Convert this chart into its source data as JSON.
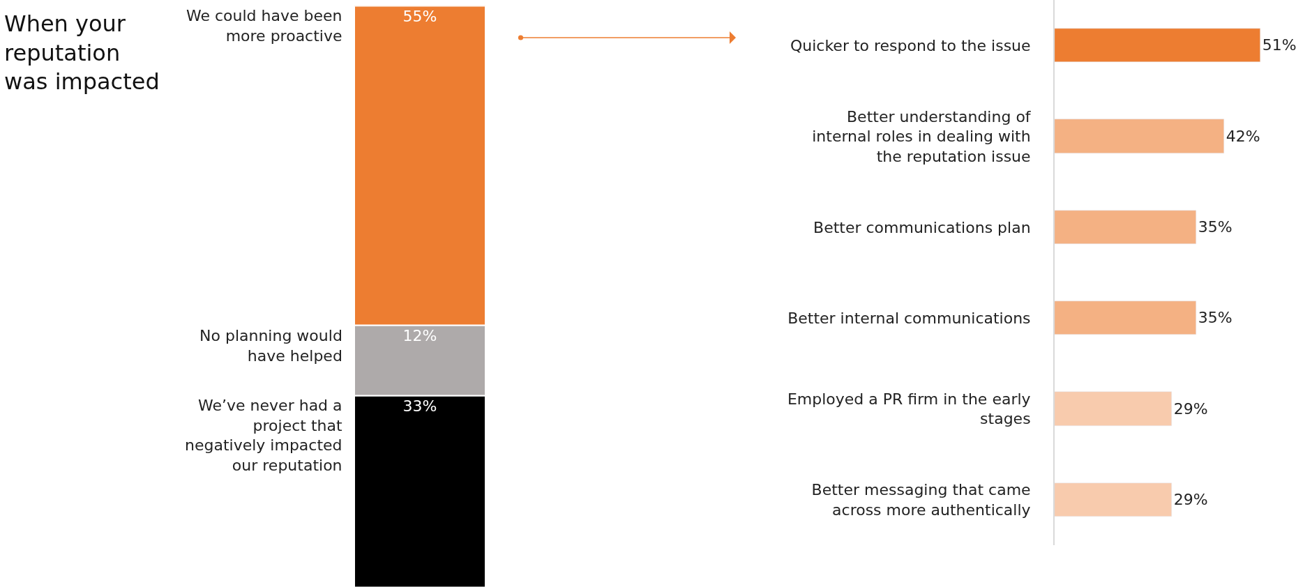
{
  "chart_data": [
    {
      "type": "other",
      "title": "When your reputation was impacted"
    },
    {
      "type": "bar",
      "stacked": true,
      "categories": [
        null
      ],
      "series": [
        {
          "name": "We’ve never had a project that negatively impacted our reputation",
          "color": "#000000",
          "values": [
            33
          ],
          "value_labels": [
            "33%"
          ]
        },
        {
          "name": "No planning would have helped",
          "color": "#aeaaaa",
          "values": [
            12
          ],
          "value_labels": [
            "12%"
          ]
        },
        {
          "name": "We could have been more proactive",
          "color": "#ed7d31",
          "values": [
            55
          ],
          "value_labels": [
            "55%"
          ]
        }
      ]
    },
    {
      "type": "bar",
      "orientation": "horizontal",
      "categories": [
        "Quicker to respond to the issue",
        "Better understanding of internal roles in dealing with the reputation issue",
        "Better communications plan",
        "Better internal communications",
        "Employed a PR firm in the early stages",
        "Better messaging that came across more authentically"
      ],
      "values": [
        51,
        42,
        35,
        35,
        29,
        29
      ],
      "colors": [
        "#ed7d31",
        "#f4b183",
        "#f4b183",
        "#f4b183",
        "#f8cbad",
        "#f8cbad"
      ],
      "value_labels": [
        "51%",
        "42%",
        "35%",
        "35%",
        "29%",
        "29%"
      ]
    }
  ]
}
